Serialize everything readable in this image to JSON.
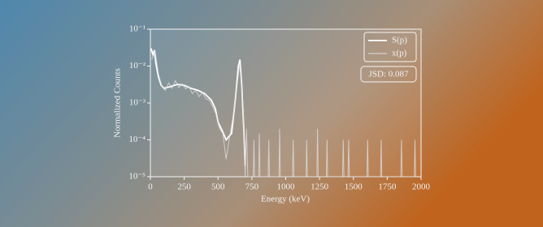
{
  "chart_data": {
    "type": "line",
    "x_label": "Energy (keV)",
    "y_label": "Normalized Counts",
    "annotation": "JSD: 0.087",
    "log_y": true,
    "legend": "upper right",
    "xlim": [
      0,
      2000
    ],
    "xticks": [
      0,
      250,
      500,
      750,
      1000,
      1250,
      1500,
      1750,
      2000
    ],
    "ylim": [
      1e-05,
      0.1
    ],
    "yticks": [
      {
        "value": 1e-05,
        "label": "10⁻⁵"
      },
      {
        "value": 0.0001,
        "label": "10⁻⁴"
      },
      {
        "value": 0.001,
        "label": "10⁻³"
      },
      {
        "value": 0.01,
        "label": "10⁻²"
      },
      {
        "value": 0.1,
        "label": "10⁻¹"
      }
    ],
    "series": [
      {
        "name": "S(p)",
        "color": "#ffffff",
        "x": [
          5,
          20,
          30,
          40,
          60,
          80,
          100,
          150,
          200,
          250,
          300,
          350,
          400,
          450,
          480,
          500,
          530,
          560,
          600,
          630,
          650,
          662,
          675,
          690,
          700
        ],
        "values": [
          0.03,
          0.02,
          0.027,
          0.012,
          0.005,
          0.003,
          0.0025,
          0.0028,
          0.0032,
          0.003,
          0.0025,
          0.0022,
          0.0018,
          0.0012,
          0.0007,
          0.0003,
          0.00018,
          0.0001,
          0.00015,
          0.0015,
          0.01,
          0.015,
          0.003,
          0.0002,
          2e-05
        ]
      },
      {
        "name": "x(p)",
        "color": "#dddddd",
        "x": [
          10,
          35,
          60,
          85,
          110,
          135,
          160,
          185,
          210,
          235,
          260,
          285,
          310,
          335,
          360,
          385,
          410,
          435,
          460,
          485,
          510,
          535,
          560,
          585,
          610,
          635,
          660,
          685,
          700,
          710,
          720,
          760,
          765,
          770,
          800,
          805,
          810,
          870,
          875,
          880,
          950,
          955,
          960,
          1050,
          1055,
          1060,
          1150,
          1155,
          1160,
          1230,
          1235,
          1240,
          1300,
          1305,
          1310,
          1420,
          1425,
          1430,
          1460,
          1465,
          1470,
          1600,
          1605,
          1610,
          1700,
          1705,
          1710,
          1850,
          1855,
          1860,
          1950,
          1955,
          1960
        ],
        "values": [
          0.015,
          0.025,
          0.006,
          0.0028,
          0.0022,
          0.0035,
          0.0025,
          0.004,
          0.0026,
          0.0033,
          0.0024,
          0.0028,
          0.0018,
          0.0022,
          0.0015,
          0.0019,
          0.0013,
          0.0012,
          0.0008,
          0.0005,
          0.0002,
          0.00015,
          3e-05,
          0.00012,
          0.0004,
          0.002,
          0.012,
          0.0008,
          1e-05,
          0.0002,
          1e-05,
          1e-05,
          0.0001,
          1e-05,
          1e-05,
          0.00015,
          1e-05,
          1e-05,
          0.0001,
          1e-05,
          1e-05,
          0.0002,
          1e-05,
          1e-05,
          0.0001,
          1e-05,
          1e-05,
          0.0001,
          1e-05,
          1e-05,
          0.0002,
          1e-05,
          1e-05,
          0.0001,
          1e-05,
          1e-05,
          0.0001,
          1e-05,
          1e-05,
          0.0001,
          1e-05,
          1e-05,
          0.0001,
          1e-05,
          1e-05,
          0.0001,
          1e-05,
          1e-05,
          0.0001,
          1e-05,
          1e-05,
          0.0001,
          1e-05
        ]
      }
    ]
  }
}
